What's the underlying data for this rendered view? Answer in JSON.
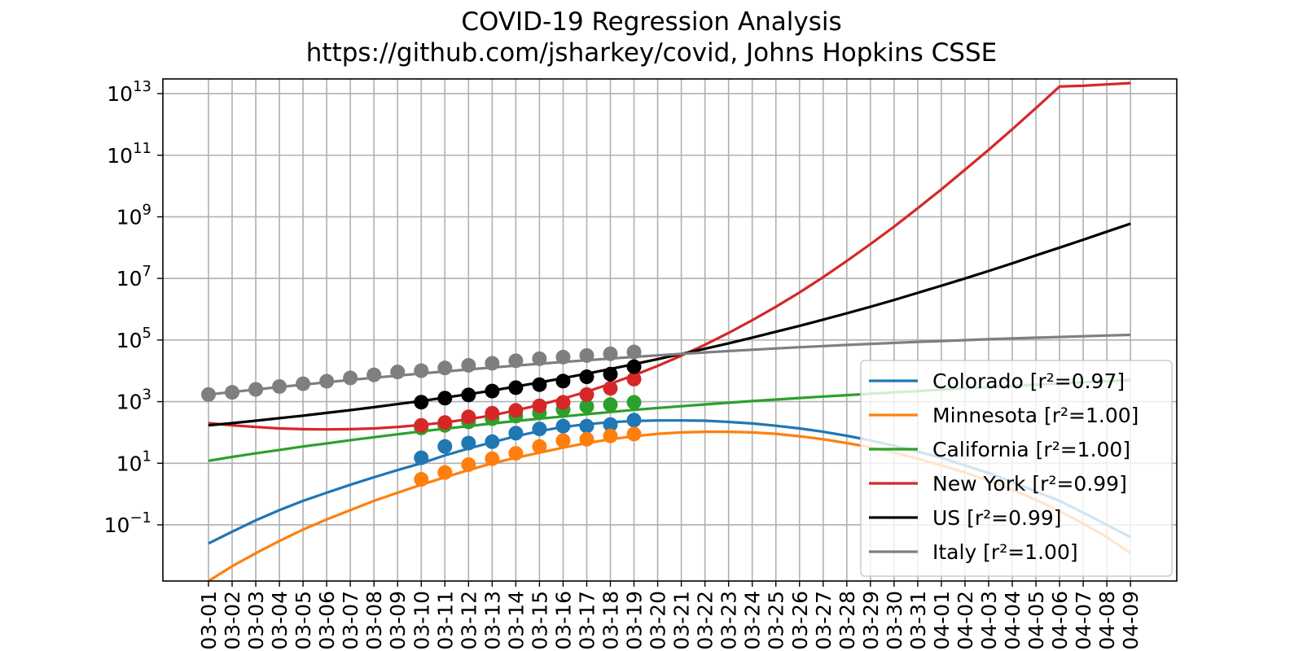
{
  "chart_data": {
    "type": "line",
    "title": "COVID-19 Regression Analysis",
    "subtitle": "https://github.com/jsharkey/covid, Johns Hopkins CSSE",
    "xlabel": "",
    "ylabel": "",
    "y_scale": "log",
    "ylim": [
      0.0015,
      30000000000000
    ],
    "y_ticks": [
      {
        "value": 0.1,
        "base": "10",
        "exp": "−1"
      },
      {
        "value": 10,
        "base": "10",
        "exp": "1"
      },
      {
        "value": 1000,
        "base": "10",
        "exp": "3"
      },
      {
        "value": 100000,
        "base": "10",
        "exp": "5"
      },
      {
        "value": 10000000,
        "base": "10",
        "exp": "7"
      },
      {
        "value": 1000000000,
        "base": "10",
        "exp": "9"
      },
      {
        "value": 100000000000,
        "base": "10",
        "exp": "11"
      },
      {
        "value": 10000000000000,
        "base": "10",
        "exp": "13"
      }
    ],
    "x": [
      "03-01",
      "03-02",
      "03-03",
      "03-04",
      "03-05",
      "03-06",
      "03-07",
      "03-08",
      "03-09",
      "03-10",
      "03-11",
      "03-12",
      "03-13",
      "03-14",
      "03-15",
      "03-16",
      "03-17",
      "03-18",
      "03-19",
      "03-20",
      "03-21",
      "03-22",
      "03-23",
      "03-24",
      "03-25",
      "03-26",
      "03-27",
      "03-28",
      "03-29",
      "03-30",
      "03-31",
      "04-01",
      "04-02",
      "04-03",
      "04-04",
      "04-05",
      "04-06",
      "04-07",
      "04-08",
      "04-09"
    ],
    "grid": true,
    "legend_position": "lower right",
    "series": [
      {
        "name": "Colorado [r²=0.97]",
        "color": "#1f77b4",
        "observed_dates": [
          "03-10",
          "03-11",
          "03-12",
          "03-13",
          "03-14",
          "03-15",
          "03-16",
          "03-17",
          "03-18",
          "03-19"
        ],
        "observed": [
          15,
          35,
          45,
          50,
          95,
          130,
          160,
          160,
          180,
          250
        ],
        "fit": [
          0.025,
          0.06,
          0.14,
          0.3,
          0.6,
          1.1,
          2.0,
          3.5,
          6.0,
          10,
          18,
          30,
          48,
          75,
          110,
          150,
          185,
          215,
          235,
          245,
          245,
          240,
          220,
          195,
          165,
          135,
          105,
          78,
          55,
          37,
          24,
          15,
          8.5,
          4.8,
          2.5,
          1.2,
          0.6,
          0.25,
          0.1,
          0.04
        ]
      },
      {
        "name": "Minnesota [r²=1.00]",
        "color": "#ff7f0e",
        "observed_dates": [
          "03-10",
          "03-11",
          "03-12",
          "03-13",
          "03-14",
          "03-15",
          "03-16",
          "03-17",
          "03-18",
          "03-19"
        ],
        "observed": [
          3,
          5,
          9,
          14,
          21,
          35,
          54,
          60,
          77,
          89
        ],
        "fit": [
          0.0015,
          0.0045,
          0.012,
          0.03,
          0.07,
          0.15,
          0.3,
          0.6,
          1.1,
          2.0,
          3.5,
          6.0,
          10,
          15,
          22,
          32,
          45,
          60,
          75,
          90,
          100,
          105,
          105,
          100,
          90,
          75,
          60,
          45,
          33,
          22,
          14,
          8.5,
          5,
          2.7,
          1.4,
          0.65,
          0.28,
          0.11,
          0.04,
          0.012
        ]
      },
      {
        "name": "California [r²=1.00]",
        "color": "#2ca02c",
        "observed_dates": [
          "03-10",
          "03-11",
          "03-12",
          "03-13",
          "03-14",
          "03-15",
          "03-16",
          "03-17",
          "03-18",
          "03-19"
        ],
        "observed": [
          140,
          170,
          220,
          280,
          340,
          430,
          560,
          700,
          800,
          950
        ],
        "fit": [
          12,
          16,
          21,
          27,
          35,
          44,
          56,
          70,
          87,
          108,
          132,
          160,
          195,
          235,
          280,
          330,
          390,
          460,
          540,
          620,
          710,
          810,
          920,
          1040,
          1170,
          1310,
          1460,
          1620,
          1800,
          2000,
          2200,
          2450,
          2700,
          2950,
          3250,
          3550,
          3900,
          4250,
          4600,
          5000
        ]
      },
      {
        "name": "New York [r²=0.99]",
        "color": "#d62728",
        "observed_dates": [
          "03-10",
          "03-11",
          "03-12",
          "03-13",
          "03-14",
          "03-15",
          "03-16",
          "03-17",
          "03-18",
          "03-19"
        ],
        "observed": [
          170,
          210,
          320,
          420,
          520,
          730,
          950,
          1700,
          2700,
          5400
        ],
        "fit": [
          200,
          170,
          150,
          135,
          128,
          125,
          128,
          135,
          150,
          175,
          210,
          270,
          360,
          520,
          780,
          1250,
          2100,
          3800,
          7200,
          14500,
          31000,
          70000,
          170000,
          440000,
          1200000,
          3500000,
          11000000,
          37000000,
          130000000,
          480000000,
          1900000000,
          7800000000,
          34000000000,
          150000000000,
          700000000000,
          3400000000000,
          17000000000000,
          18000000000000,
          20000000000000,
          22000000000000
        ]
      },
      {
        "name": "US [r²=0.99]",
        "color": "#000000",
        "observed_dates": [
          "03-10",
          "03-11",
          "03-12",
          "03-13",
          "03-14",
          "03-15",
          "03-16",
          "03-17",
          "03-18",
          "03-19"
        ],
        "observed": [
          960,
          1300,
          1650,
          2200,
          2850,
          3550,
          4650,
          6400,
          7800,
          13600
        ],
        "fit": [
          170,
          200,
          240,
          290,
          350,
          430,
          530,
          660,
          830,
          1050,
          1350,
          1750,
          2300,
          3100,
          4200,
          5800,
          8100,
          11500,
          16500,
          24000,
          35000,
          52000,
          78000,
          120000,
          185000,
          290000,
          460000,
          740000,
          1200000,
          2000000,
          3400000,
          5800000,
          10000000,
          17500000,
          31000000,
          56000000,
          100000000,
          180000000,
          330000000,
          600000000
        ]
      },
      {
        "name": "Italy [r²=1.00]",
        "color": "#7f7f7f",
        "observed_dates": [
          "03-01",
          "03-02",
          "03-03",
          "03-04",
          "03-05",
          "03-06",
          "03-07",
          "03-08",
          "03-09",
          "03-10",
          "03-11",
          "03-12",
          "03-13",
          "03-14",
          "03-15",
          "03-16",
          "03-17",
          "03-18",
          "03-19"
        ],
        "observed": [
          1700,
          2000,
          2500,
          3100,
          3800,
          4600,
          5900,
          7400,
          9200,
          10100,
          12400,
          15100,
          17600,
          21200,
          24700,
          27900,
          31500,
          35700,
          41000
        ],
        "fit": [
          1700,
          2050,
          2480,
          2980,
          3560,
          4250,
          5050,
          5950,
          7000,
          8200,
          9550,
          11100,
          12850,
          14800,
          17000,
          19400,
          22100,
          25100,
          28300,
          31800,
          35500,
          39500,
          43800,
          48400,
          53200,
          58300,
          63600,
          69100,
          74800,
          80700,
          86800,
          93000,
          99400,
          106000,
          112600,
          119300,
          126100,
          133000,
          140000,
          147000
        ]
      }
    ]
  }
}
